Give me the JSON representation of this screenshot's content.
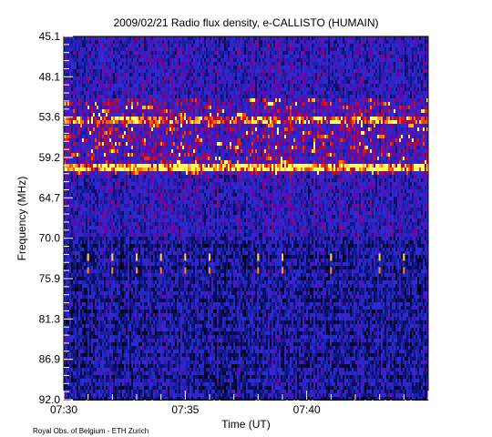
{
  "chart_data": {
    "type": "heatmap",
    "title": "2009/02/21  Radio flux density, e-CALLISTO (HUMAIN)",
    "xlabel": "Time (UT)",
    "ylabel": "Frequency (MHz)",
    "x_ticks": [
      "07:30",
      "07:35",
      "07:40"
    ],
    "y_ticks": [
      "45.1",
      "48.1",
      "53.6",
      "59.2",
      "64.7",
      "70.0",
      "75.9",
      "81.3",
      "86.9",
      "92.0"
    ],
    "xlim": [
      "07:30",
      "07:45"
    ],
    "ylim": [
      45.1,
      92.0
    ],
    "y_inverted": true,
    "colormap": [
      "#000000",
      "#0a0f6e",
      "#2a2fd8",
      "#6a00a8",
      "#d01010",
      "#ff7a00",
      "#ffff66"
    ],
    "bursts": [
      {
        "time": "07:31",
        "freq_mhz": 73.6
      },
      {
        "time": "07:32",
        "freq_mhz": 73.6
      },
      {
        "time": "07:33",
        "freq_mhz": 73.6
      },
      {
        "time": "07:34",
        "freq_mhz": 73.6
      },
      {
        "time": "07:35",
        "freq_mhz": 73.6
      },
      {
        "time": "07:36",
        "freq_mhz": 73.6
      },
      {
        "time": "07:38",
        "freq_mhz": 73.6
      },
      {
        "time": "07:39",
        "freq_mhz": 73.6
      },
      {
        "time": "07:41",
        "freq_mhz": 73.6
      },
      {
        "time": "07:43",
        "freq_mhz": 73.6
      },
      {
        "time": "07:44",
        "freq_mhz": 73.6
      }
    ]
  },
  "footer": {
    "credit": "Royal Obs. of Belgium - ETH Zurich"
  }
}
